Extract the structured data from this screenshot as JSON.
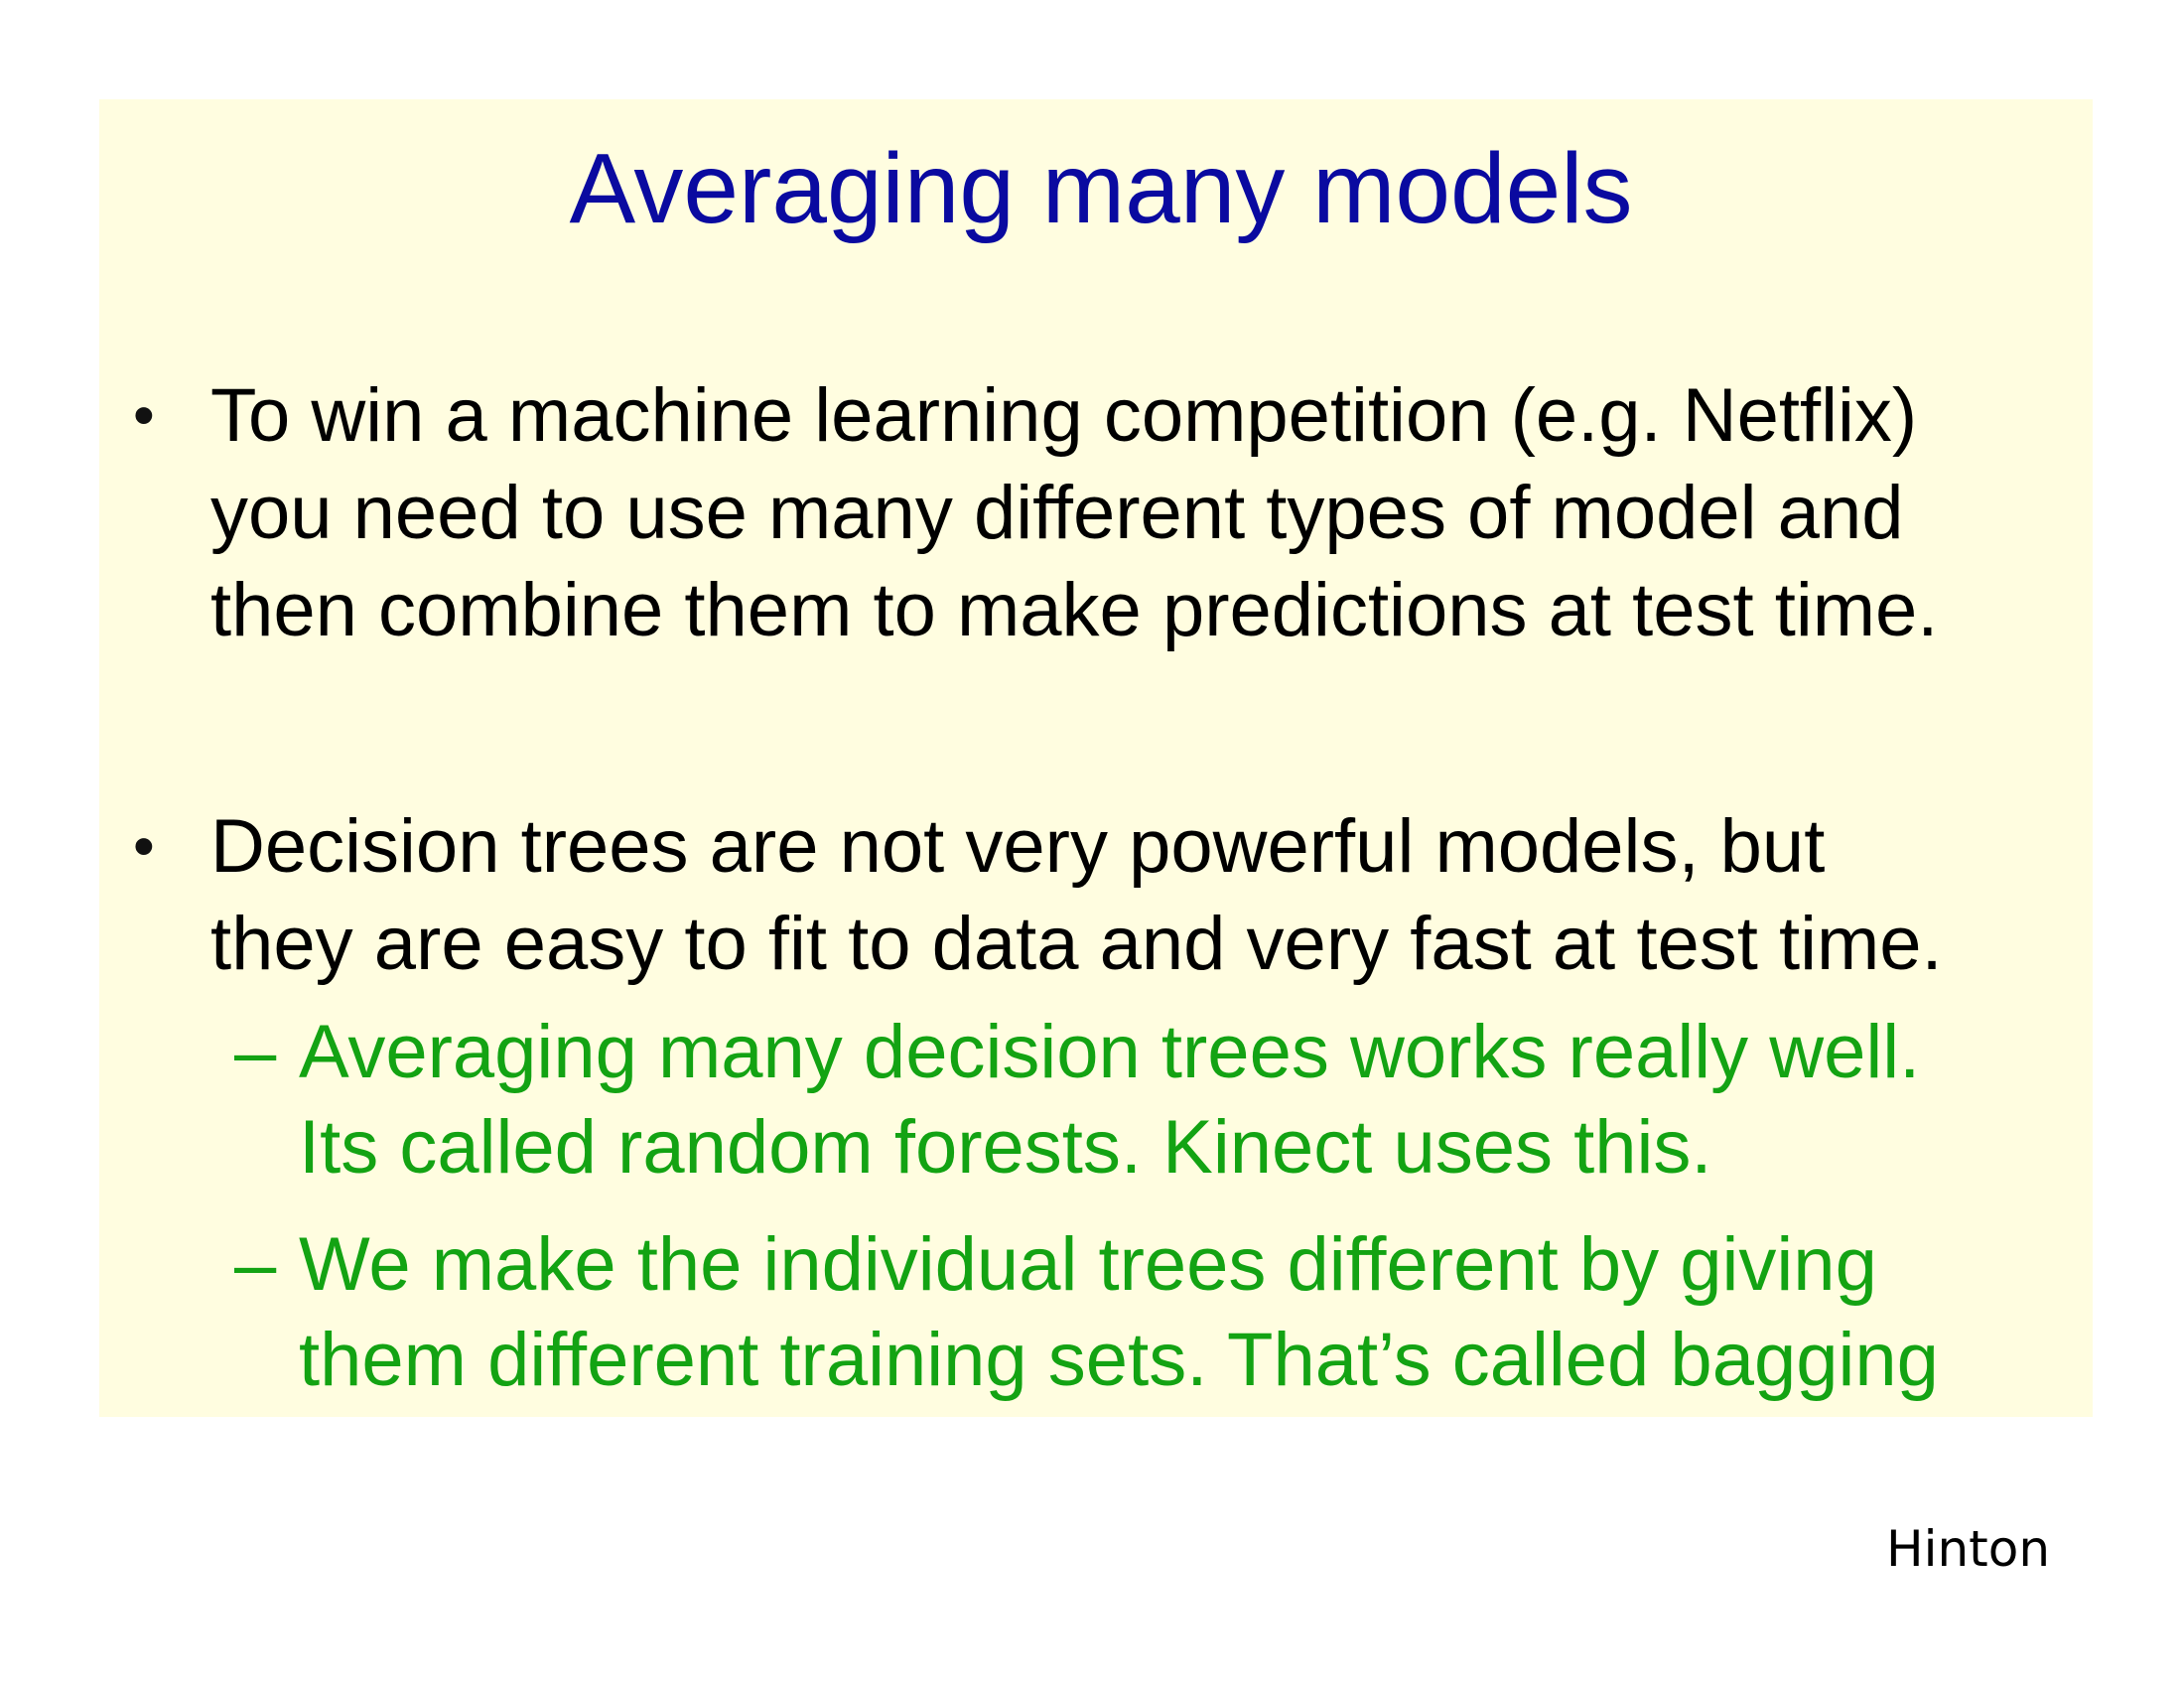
{
  "slide": {
    "title": "Averaging many models",
    "bullets": [
      {
        "marker": "•",
        "lines": [
          "To win a machine learning competition (e.g. Netflix)",
          "you need to use many different types of model and",
          "then combine them to make predictions at test time."
        ]
      },
      {
        "marker": "•",
        "lines": [
          "Decision trees are not very powerful models, but",
          "they are easy to fit to data and very fast at test time."
        ],
        "sub_bullets": [
          {
            "marker": "–",
            "lines": [
              "Averaging many decision trees works really well.",
              "Its called random forests. Kinect uses this."
            ]
          },
          {
            "marker": "–",
            "lines": [
              "We make the individual trees different by giving",
              "them different training sets. That’s called bagging"
            ]
          }
        ]
      }
    ],
    "author": "Hinton"
  },
  "colors": {
    "panel_background": "#fffde0",
    "title": "#0a0aa0",
    "body_text": "#000000",
    "sub_bullet_text": "#13a313"
  }
}
